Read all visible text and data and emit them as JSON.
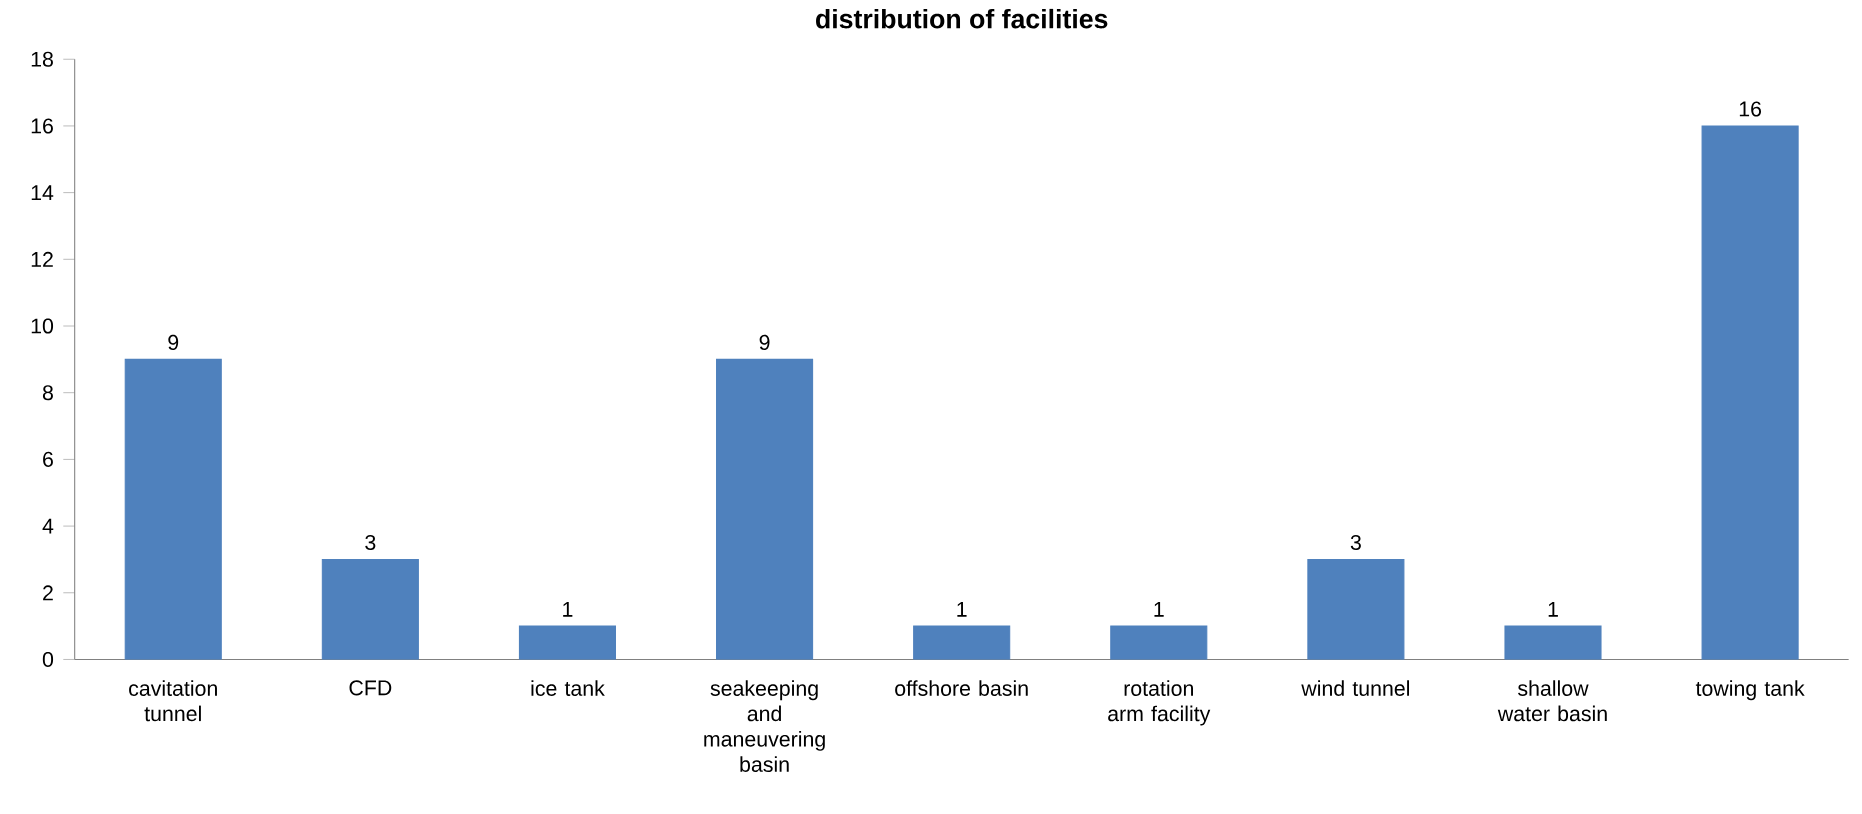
{
  "chart_data": {
    "type": "bar",
    "title": "distribution of facilities",
    "categories": [
      "cavitation tunnel",
      "CFD",
      "ice tank",
      "seakeeping and maneuvering basin",
      "offshore basin",
      "rotation arm facility",
      "wind tunnel",
      "shallow water basin",
      "towing tank"
    ],
    "values": [
      9,
      3,
      1,
      9,
      1,
      1,
      3,
      1,
      16
    ],
    "color": "#4f81bd",
    "ylim": [
      0,
      18
    ],
    "yticks": [
      0,
      2,
      4,
      6,
      8,
      10,
      12,
      14,
      16,
      18
    ],
    "grid": false,
    "data_labels": true
  }
}
